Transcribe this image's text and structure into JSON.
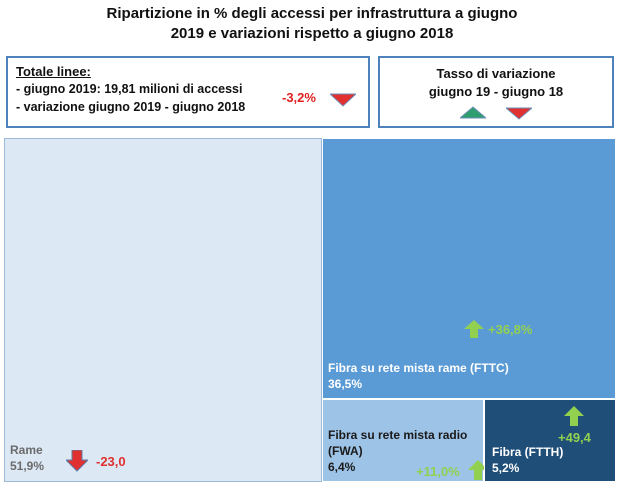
{
  "title_line1": "Ripartizione in % degli accessi per infrastruttura a giugno",
  "title_line2": "2019 e variazioni rispetto a giugno 2018",
  "summary": {
    "heading": "Totale linee:",
    "line1": "- giugno 2019: 19,81 milioni di accessi",
    "line2": "- variazione  giugno 2019 - giugno 2018",
    "change": "-3,2%"
  },
  "legend": {
    "line1": "Tasso  di variazione",
    "line2": "giugno 19 - giugno 18"
  },
  "colors": {
    "rame": "#dde8f5",
    "fttc": "#5b9bd5",
    "fwa": "#9dc3e6",
    "ftth": "#1f4e79",
    "up_arrow": "#2e9e6e",
    "down_arrow": "#e0302f",
    "light_up_arrow": "#92d050"
  },
  "chart_data": {
    "type": "treemap",
    "items": [
      {
        "name": "Rame",
        "value": 51.9,
        "value_label": "51,9%",
        "change": -23.0,
        "change_label": "-23,0"
      },
      {
        "name": "Fibra su rete mista rame (FTTC)",
        "value": 36.5,
        "value_label": "36,5%",
        "change": 36.8,
        "change_label": "+36,8%"
      },
      {
        "name_line1": "Fibra su rete mista radio",
        "name_line2": "(FWA)",
        "value": 6.4,
        "value_label": "6,4%",
        "change": 11.0,
        "change_label": "+11,0%"
      },
      {
        "name": "Fibra (FTTH)",
        "value": 5.2,
        "value_label": "5,2%",
        "change": 49.4,
        "change_label": "+49,4"
      }
    ]
  }
}
